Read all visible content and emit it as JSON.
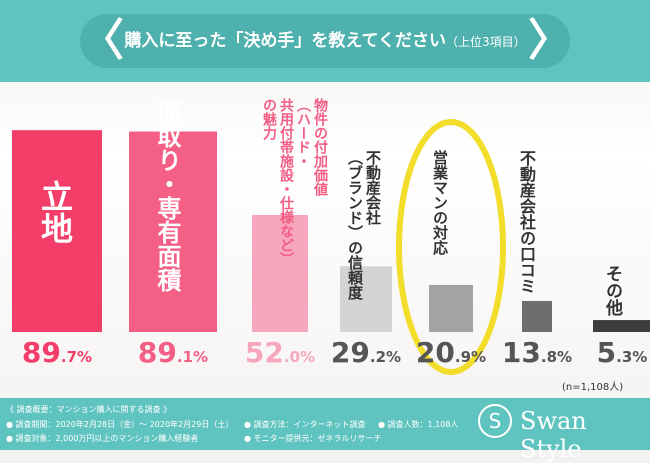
{
  "header": {
    "title": "購入に至った「決め手」を教えてください",
    "subtitle": "（上位3項目）"
  },
  "chart_data": {
    "type": "bar",
    "categories": [
      "立地",
      "間取り・専有面積",
      "物件の付加価値（ハード・共用付帯施設・仕様など）の魅力",
      "不動産会社（ブランド）の信頼度",
      "営業マンの対応",
      "不動産会社の口コミ",
      "その他"
    ],
    "bar_labels": [
      {
        "lines": [
          "立地"
        ]
      },
      {
        "lines": [
          "間取り・専有面積"
        ]
      },
      {
        "lines": [
          "物件の付加価値",
          "（ハード・",
          "共用付帯施設・仕様など）",
          "の魅力"
        ]
      },
      {
        "lines": [
          "不動産会社",
          "（ブランド）の信頼度"
        ]
      },
      {
        "lines": [
          "営業マンの対応"
        ]
      },
      {
        "lines": [
          "不動産会社の口コミ"
        ]
      },
      {
        "lines": [
          "その他"
        ]
      }
    ],
    "values": [
      89.7,
      89.1,
      52.0,
      29.2,
      20.9,
      13.8,
      5.3
    ],
    "value_labels": [
      {
        "num": "89",
        "dec": ".7%"
      },
      {
        "num": "89",
        "dec": ".1%"
      },
      {
        "num": "52",
        "dec": ".0%"
      },
      {
        "num": "29",
        "dec": ".2%"
      },
      {
        "num": "20",
        "dec": ".9%"
      },
      {
        "num": "13",
        "dec": ".8%"
      },
      {
        "num": "5",
        "dec": ".3%"
      }
    ],
    "ylim": [
      0,
      100
    ],
    "bar_colors": [
      "#f33e6a",
      "#f45f86",
      "#f7a7bd",
      "#d4d4d4",
      "#a3a3a3",
      "#6e6e6e",
      "#3d3d3d"
    ],
    "value_colors": [
      "#f33e6a",
      "#f45f86",
      "#f7a7bd",
      "#555555",
      "#555555",
      "#555555",
      "#555555"
    ],
    "label_colors": [
      "#ffffff",
      "#ffffff",
      "#f25d84",
      "#333333",
      "#333333",
      "#333333",
      "#333333"
    ],
    "highlight": {
      "index": 4,
      "color": "#f1dd2a"
    }
  },
  "n_note": "(n=1,108人)",
  "footer": {
    "survey_title": "《 調査概要：マンション購入に関する調査 》",
    "period": "● 調査期間：2020年2月28日（金）～ 2020年2月29日（土）",
    "method": "● 調査方法：インターネット調査",
    "people": "● 調査人数：1,108人",
    "target": "● 調査対象：2,000万円以上のマンション購入経験者",
    "provider": "● モニター提供元：ゼネラルリサーチ",
    "brand": "Swan Style",
    "brand_mark": "S"
  }
}
